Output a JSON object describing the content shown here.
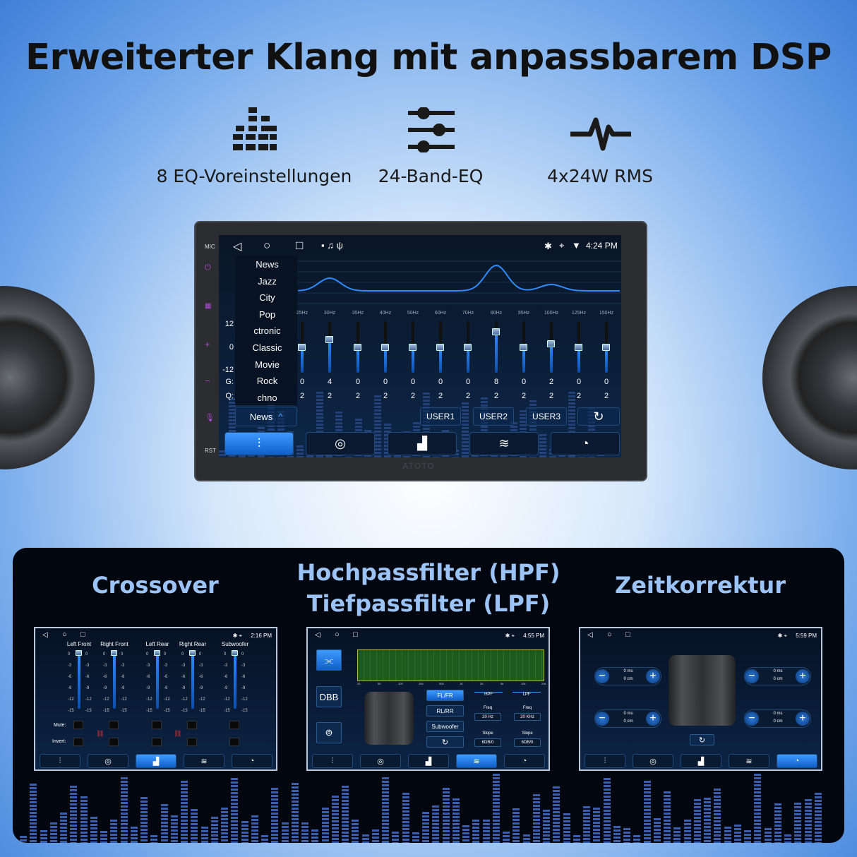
{
  "headline": "Erweiterter Klang mit anpassbarem DSP",
  "features": [
    {
      "icon": "eq-bars-icon",
      "label": "8 EQ-Voreinstellungen"
    },
    {
      "icon": "sliders-icon",
      "label": "24-Band-EQ"
    },
    {
      "icon": "waveform-icon",
      "label": "4x24W RMS"
    }
  ],
  "device": {
    "brand": "ATOTO",
    "side_labels": {
      "mic": "MIC",
      "rst": "RST"
    },
    "status": {
      "time": "4:24 PM"
    },
    "presets": [
      "News",
      "Jazz",
      "City",
      "Pop",
      "ctronic",
      "Classic",
      "Movie",
      "Rock",
      "chno"
    ],
    "selected_preset": "News",
    "scale": {
      "top": "12",
      "mid": "0",
      "bottom": "-12",
      "gain_label": "G:",
      "q_label": "Q:"
    },
    "bands": [
      {
        "f": "25Hz",
        "g": 0,
        "q": 2
      },
      {
        "f": "30Hz",
        "g": 4,
        "q": 2
      },
      {
        "f": "35Hz",
        "g": 0,
        "q": 2
      },
      {
        "f": "40Hz",
        "g": 0,
        "q": 2
      },
      {
        "f": "50Hz",
        "g": 0,
        "q": 2
      },
      {
        "f": "60Hz",
        "g": 0,
        "q": 2
      },
      {
        "f": "70Hz",
        "g": 0,
        "q": 2
      },
      {
        "f": "80Hz",
        "g": 8,
        "q": 2
      },
      {
        "f": "95Hz",
        "g": 0,
        "q": 2
      },
      {
        "f": "100Hz",
        "g": 2,
        "q": 2
      },
      {
        "f": "125Hz",
        "g": 0,
        "q": 2
      },
      {
        "f": "150Hz",
        "g": 0,
        "q": 2
      }
    ],
    "user_buttons": [
      "USER1",
      "USER2",
      "USER3"
    ],
    "tabs": [
      {
        "icon": "equalizer-icon",
        "glyph": "⫶",
        "active": true
      },
      {
        "icon": "target-icon",
        "glyph": "◎",
        "active": false
      },
      {
        "icon": "bars-icon",
        "glyph": "▟",
        "active": false
      },
      {
        "icon": "waves-icon",
        "glyph": "≋",
        "active": false
      },
      {
        "icon": "gauge-icon",
        "glyph": "◔",
        "active": false
      }
    ]
  },
  "accent": "#2f8cff",
  "sections": {
    "crossover": {
      "title": "Crossover",
      "time": "2:16 PM",
      "channels": [
        "Left Front",
        "Right Front",
        "Left Rear",
        "Right Rear",
        "Subwoofer"
      ],
      "ticks": [
        "0",
        "-3",
        "-6",
        "-9",
        "-12",
        "-15"
      ],
      "mute": "Mute:",
      "invert": "Invert:",
      "active_tab": 2
    },
    "filter": {
      "title1": "Hochpassfilter (HPF)",
      "title2": "Tiefpassfilter (LPF)",
      "time": "4:55 PM",
      "dbb": "DBB",
      "axis": [
        "20",
        "50",
        "100",
        "200",
        "500",
        "1K",
        "2K",
        "5k",
        "10k",
        "20k"
      ],
      "channels": [
        "FL/FR",
        "RL/RR",
        "Subwoofer"
      ],
      "hpf": "HPF",
      "lpf": "LPF",
      "freq_label": "Freq",
      "hpf_freq": "20 Hz",
      "lpf_freq": "20 KHz",
      "slope_label": "Slope",
      "hpf_slope": "6DB/0",
      "lpf_slope": "6DB/0",
      "active_tab": 3
    },
    "time": {
      "title": "Zeitkorrektur",
      "time": "5:59 PM",
      "delays": [
        {
          "ms": "0 ms",
          "cm": "0 cm"
        },
        {
          "ms": "0 ms",
          "cm": "0 cm"
        },
        {
          "ms": "0 ms",
          "cm": "0 cm"
        },
        {
          "ms": "0 ms",
          "cm": "0 cm"
        }
      ],
      "active_tab": 4
    }
  }
}
